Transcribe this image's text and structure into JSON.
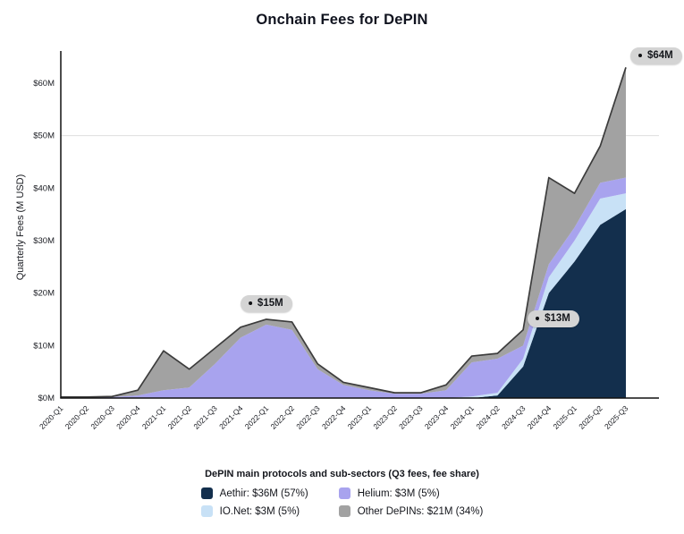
{
  "title": "Onchain Fees for DePIN",
  "y_axis_label": "Quarterly Fees (M USD)",
  "legend": {
    "title": "DePIN main protocols and sub-sectors (Q3 fees, fee share)",
    "items": [
      {
        "label": "Aethir: $36M (57%)",
        "series": "Aethir"
      },
      {
        "label": "Helium: $3M (5%)",
        "series": "Helium"
      },
      {
        "label": "IO.Net: $3M (5%)",
        "series": "IO.Net"
      },
      {
        "label": "Other DePINs: $21M (34%)",
        "series": "Other DePINs"
      }
    ]
  },
  "chart_data": {
    "type": "area",
    "stacked": true,
    "title": "Onchain Fees for DePIN",
    "xlabel": "",
    "ylabel": "Quarterly Fees (M USD)",
    "ylim": [
      0,
      66
    ],
    "grid": "single line at $50M",
    "legend_position": "bottom",
    "categories": [
      "2020-Q1",
      "2020-Q2",
      "2020-Q3",
      "2020-Q4",
      "2021-Q1",
      "2021-Q2",
      "2021-Q3",
      "2021-Q4",
      "2022-Q1",
      "2022-Q2",
      "2022-Q3",
      "2022-Q4",
      "2023-Q1",
      "2023-Q2",
      "2023-Q3",
      "2023-Q4",
      "2024-Q1",
      "2024-Q2",
      "2024-Q3",
      "2024-Q4",
      "2025-Q1",
      "2025-Q2",
      "2025-Q3"
    ],
    "series": [
      {
        "name": "Aethir",
        "color": "#132f4d",
        "values": [
          0,
          0,
          0,
          0,
          0,
          0,
          0,
          0,
          0,
          0,
          0,
          0,
          0,
          0,
          0,
          0,
          0,
          0.5,
          6,
          20,
          26,
          33,
          36
        ]
      },
      {
        "name": "IO.Net",
        "color": "#c8e1f6",
        "values": [
          0,
          0,
          0,
          0,
          0,
          0,
          0,
          0,
          0,
          0,
          0,
          0,
          0,
          0,
          0,
          0,
          0.3,
          0.5,
          1.5,
          3,
          4,
          5,
          3
        ]
      },
      {
        "name": "Helium",
        "color": "#a8a3ee",
        "values": [
          0.1,
          0.1,
          0.2,
          0.5,
          1.5,
          2,
          6.5,
          11.5,
          14,
          13,
          5.5,
          2.5,
          1.5,
          0.8,
          0.8,
          1.5,
          6.5,
          6.5,
          2.5,
          2.5,
          2.5,
          3,
          3
        ]
      },
      {
        "name": "Other DePINs",
        "color": "#a2a2a2",
        "values": [
          0.1,
          0.1,
          0.1,
          1,
          7.5,
          3.5,
          3,
          2,
          1,
          1.5,
          1,
          0.5,
          0.5,
          0.2,
          0.2,
          1,
          1.2,
          1,
          3,
          16.5,
          6.5,
          7,
          21
        ]
      }
    ],
    "yticks": [
      {
        "label": "$0M",
        "value": 0
      },
      {
        "label": "$10M",
        "value": 10
      },
      {
        "label": "$20M",
        "value": 20
      },
      {
        "label": "$30M",
        "value": 30
      },
      {
        "label": "$40M",
        "value": 40
      },
      {
        "label": "$50M",
        "value": 50
      },
      {
        "label": "$60M",
        "value": 60
      }
    ],
    "gridlines": [
      50
    ],
    "annotations": [
      {
        "label": "$15M",
        "quarter": "2022-Q1",
        "placement": "above"
      },
      {
        "label": "$13M",
        "quarter": "2024-Q3",
        "placement": "right"
      },
      {
        "label": "$64M",
        "quarter": "2025-Q3",
        "placement": "right"
      }
    ],
    "total_line_color": "#3c3c3c",
    "annotation_badge_color": "#d4d4d4"
  }
}
